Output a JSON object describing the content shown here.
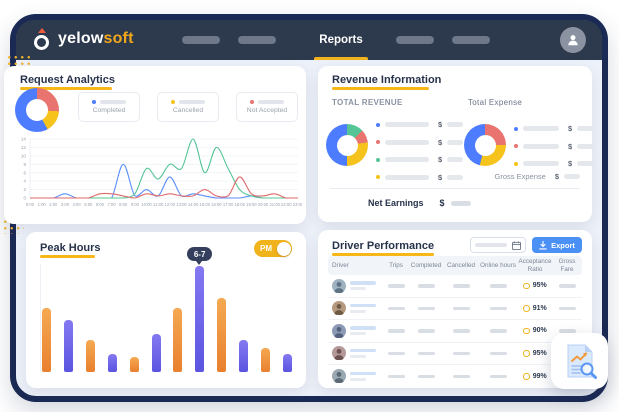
{
  "navbar": {
    "logo_text_1": "yelow",
    "logo_text_2": "soft",
    "active_tab": "Reports"
  },
  "colors": {
    "accent_yellow": "#f7b718",
    "navbar_bg": "#2d3a4d",
    "frame_border": "#1b2a55",
    "export_blue": "#4b90f5",
    "toggle_yellow": "#f1b31c"
  },
  "request_analytics": {
    "title": "Request Analytics",
    "legend": [
      {
        "label": "Completed",
        "dot_color": "#4d7cfe"
      },
      {
        "label": "Cancelled",
        "dot_color": "#f6c21c"
      },
      {
        "label": "Not Accepted",
        "dot_color": "#e8736f"
      }
    ]
  },
  "revenue_information": {
    "title": "Revenue Information",
    "revenue_label": "TOTAL REVENUE",
    "expense_label": "Total Expense",
    "gross_expense_label": "Gross Expense",
    "net_earnings_label": "Net Earnings",
    "currency_symbol": "$",
    "revenue_legend_dots": [
      "#4d7cfe",
      "#e8736f",
      "#56c596",
      "#f6c21c"
    ],
    "expense_legend_dots": [
      "#4d7cfe",
      "#e8736f",
      "#f6c21c"
    ]
  },
  "peak_hours": {
    "title": "Peak Hours",
    "toggle_label": "PM",
    "toggle_state": "on",
    "tooltip": "6-7"
  },
  "driver_performance": {
    "title": "Driver Performance",
    "export_label": "Export",
    "columns": [
      "Driver",
      "Trips",
      "Completed",
      "Cancelled",
      "Online hours",
      "Acceptance Ratio",
      "Gross Fare"
    ],
    "rows": [
      {
        "acceptance_ratio": "95%"
      },
      {
        "acceptance_ratio": "91%"
      },
      {
        "acceptance_ratio": "90%"
      },
      {
        "acceptance_ratio": "95%"
      },
      {
        "acceptance_ratio": "99%"
      }
    ]
  },
  "chart_data": [
    {
      "type": "pie",
      "name": "request-analytics-donut",
      "note": "clockwise from top",
      "segments": [
        {
          "label": "Not Accepted",
          "color": "#e8736f",
          "value": 26
        },
        {
          "label": "Cancelled",
          "color": "#f6c21c",
          "value": 16
        },
        {
          "label": "Completed",
          "color": "#4d7cfe",
          "value": 58
        }
      ]
    },
    {
      "type": "line",
      "name": "requests-by-hour",
      "x": [
        "0:00",
        "1:00",
        "2:00",
        "3:00",
        "4:00",
        "5:00",
        "6:00",
        "7:00",
        "8:00",
        "9:00",
        "10:00",
        "11:00",
        "12:00",
        "13:00",
        "14:00",
        "15:00",
        "16:00",
        "17:00",
        "18:00",
        "19:00",
        "20:00",
        "21:00",
        "22:00",
        "23:00"
      ],
      "ylim": [
        0,
        14
      ],
      "yticks": [
        0,
        2,
        4,
        6,
        8,
        10,
        12,
        14
      ],
      "grid": true,
      "series": [
        {
          "name": "blue",
          "color": "#5b8ff9",
          "values": [
            0,
            0,
            0,
            1,
            0,
            0,
            0,
            0,
            8,
            0.5,
            2,
            0.5,
            5,
            0.5,
            1,
            0.5,
            0,
            0,
            0,
            0.5,
            0,
            0,
            0,
            0
          ]
        },
        {
          "name": "green",
          "color": "#56c596",
          "values": [
            0,
            0,
            0,
            0,
            0,
            0,
            0,
            0,
            0,
            1,
            7,
            4.5,
            8,
            7,
            14,
            6,
            12,
            7,
            2,
            0.5,
            0,
            0,
            0,
            0
          ]
        },
        {
          "name": "red",
          "color": "#e06a6a",
          "values": [
            0,
            0,
            0,
            0,
            0,
            0,
            1,
            1,
            0.5,
            0,
            1,
            0.5,
            1,
            0.5,
            0.5,
            2,
            0.5,
            0.5,
            5,
            1,
            0.5,
            1,
            0,
            0
          ]
        }
      ]
    },
    {
      "type": "pie",
      "name": "total-revenue-donut",
      "note": "clockwise from top",
      "segments": [
        {
          "label": "segment-green",
          "color": "#56c596",
          "value": 13
        },
        {
          "label": "segment-red",
          "color": "#e8736f",
          "value": 10
        },
        {
          "label": "segment-yellow",
          "color": "#f6c21c",
          "value": 27
        },
        {
          "label": "segment-blue",
          "color": "#4d7cfe",
          "value": 50
        }
      ]
    },
    {
      "type": "pie",
      "name": "total-expense-donut",
      "note": "clockwise from top",
      "segments": [
        {
          "label": "segment-red",
          "color": "#e8736f",
          "value": 25
        },
        {
          "label": "segment-yellow",
          "color": "#f6c21c",
          "value": 29
        },
        {
          "label": "segment-blue",
          "color": "#4d7cfe",
          "value": 46
        }
      ]
    },
    {
      "type": "bar",
      "name": "peak-hours-bars",
      "values_pct_of_max": [
        60,
        49,
        30,
        17,
        14,
        36,
        60,
        100,
        70,
        30,
        23,
        17
      ],
      "bar_colors": [
        "orange",
        "purple",
        "orange",
        "purple",
        "orange",
        "purple",
        "orange",
        "purple",
        "orange",
        "purple",
        "orange",
        "purple"
      ],
      "peak_index": 7,
      "peak_label": "6-7"
    }
  ]
}
